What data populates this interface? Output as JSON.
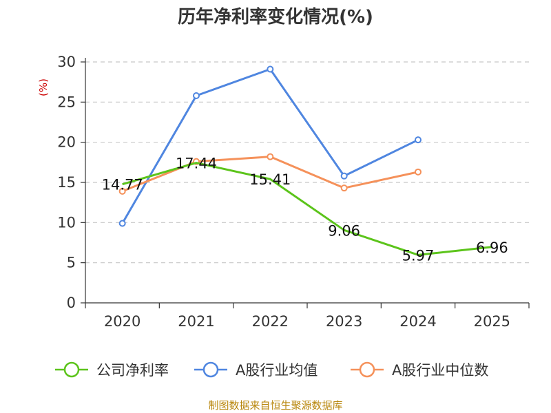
{
  "chart_data": {
    "type": "line",
    "title": "历年净利率变化情况(%)",
    "unit_label": "(%)",
    "categories": [
      "2020",
      "2021",
      "2022",
      "2023",
      "2024",
      "2025"
    ],
    "ylim": [
      0,
      30
    ],
    "yticks": [
      0,
      5,
      10,
      15,
      20,
      25,
      30
    ],
    "grid": true,
    "legend_position": "bottom",
    "series": [
      {
        "name": "公司净利率",
        "color": "#5cc41b",
        "values": [
          14.77,
          17.44,
          15.41,
          9.06,
          5.97,
          6.96
        ],
        "labels": [
          "14.77",
          "17.44",
          "15.41",
          "9.06",
          "5.97",
          "6.96"
        ]
      },
      {
        "name": "A股行业均值",
        "color": "#4f86e0",
        "values": [
          9.9,
          25.8,
          29.1,
          15.8,
          20.3,
          null
        ]
      },
      {
        "name": "A股行业中位数",
        "color": "#f5915a",
        "values": [
          13.9,
          17.6,
          18.2,
          14.3,
          16.3,
          null
        ]
      }
    ]
  },
  "source": "制图数据来自恒生聚源数据库"
}
